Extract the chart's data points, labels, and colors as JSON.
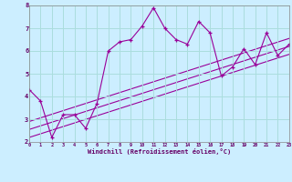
{
  "xlabel": "Windchill (Refroidissement éolien,°C)",
  "bg_color": "#cceeff",
  "line_color": "#990099",
  "grid_color": "#aadddd",
  "xlim": [
    0,
    23
  ],
  "ylim": [
    2,
    8
  ],
  "xticks": [
    0,
    1,
    2,
    3,
    4,
    5,
    6,
    7,
    8,
    9,
    10,
    11,
    12,
    13,
    14,
    15,
    16,
    17,
    18,
    19,
    20,
    21,
    22,
    23
  ],
  "yticks": [
    2,
    3,
    4,
    5,
    6,
    7,
    8
  ],
  "main_x": [
    0,
    1,
    2,
    3,
    4,
    5,
    6,
    7,
    8,
    9,
    10,
    11,
    12,
    13,
    14,
    15,
    16,
    17,
    18,
    19,
    20,
    21,
    22,
    23
  ],
  "main_y": [
    4.3,
    3.8,
    2.2,
    3.2,
    3.2,
    2.6,
    3.7,
    6.0,
    6.4,
    6.5,
    7.1,
    7.9,
    7.0,
    6.5,
    6.3,
    7.3,
    6.8,
    4.9,
    5.3,
    6.1,
    5.4,
    6.8,
    5.8,
    6.3
  ],
  "line1_x": [
    0,
    23
  ],
  "line1_y": [
    2.2,
    5.85
  ],
  "line2_x": [
    0,
    23
  ],
  "line2_y": [
    2.55,
    6.2
  ],
  "line3_x": [
    0,
    23
  ],
  "line3_y": [
    2.9,
    6.55
  ]
}
